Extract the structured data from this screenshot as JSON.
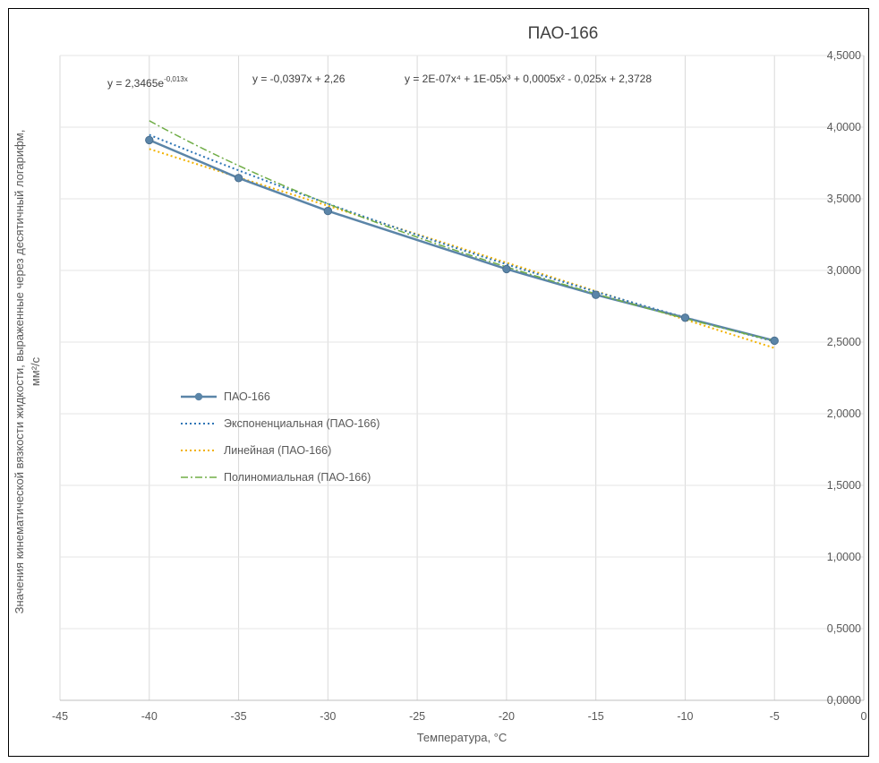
{
  "chart_data": {
    "type": "line",
    "title": "ПАО-166",
    "xlabel": "Температура, °C",
    "ylabel_line1": "Значения кинематической вязкости жидкости, выраженные  через десятичный логарифм,",
    "ylabel_line2": "мм²/с",
    "xlim": [
      -45,
      0
    ],
    "ylim": [
      0,
      4.5
    ],
    "x_ticks": [
      -45,
      -40,
      -35,
      -30,
      -25,
      -20,
      -15,
      -10,
      -5,
      0
    ],
    "x_tick_labels": [
      "-45",
      "-40",
      "-35",
      "-30",
      "-25",
      "-20",
      "-15",
      "-10",
      "-5",
      "0"
    ],
    "y_ticks": [
      0,
      0.5,
      1,
      1.5,
      2,
      2.5,
      3,
      3.5,
      4,
      4.5
    ],
    "y_tick_labels": [
      "0,0000",
      "0,5000",
      "1,0000",
      "1,5000",
      "2,0000",
      "2,5000",
      "3,0000",
      "3,5000",
      "4,0000",
      "4,5000"
    ],
    "y_axis_side": "right",
    "grid": "vertical",
    "series": [
      {
        "name": "ПАО-166",
        "x": [
          -40,
          -35,
          -30,
          -20,
          -15,
          -10,
          -5
        ],
        "y": [
          3.91,
          3.645,
          3.415,
          3.01,
          2.83,
          2.67,
          2.51
        ],
        "color": "#5B85A8",
        "style": "solid-markers"
      }
    ],
    "trendlines": [
      {
        "name": "Экспоненциальная (ПАО-166)",
        "type": "exponential",
        "equation": "y = 2,3465e",
        "equation_exp": "-0,013x",
        "a": 2.3465,
        "b": -0.013,
        "color": "#2E75B6",
        "style": "dotted"
      },
      {
        "name": "Линейная (ПАО-166)",
        "type": "linear",
        "equation": "y = -0,0397x + 2,26",
        "slope": -0.0397,
        "intercept": 2.26,
        "color": "#F2B200",
        "style": "dotted"
      },
      {
        "name": "Полиномиальная (ПАО-166)",
        "type": "polynomial",
        "equation": "y = 2E-07x⁴ + 1E-05x³ + 0,0005x² - 0,025x + 2,3728",
        "coefficients": [
          2.3728,
          -0.025,
          0.0005,
          1e-05,
          2e-07
        ],
        "color": "#70AD47",
        "style": "dash-dot"
      }
    ],
    "legend_position": "left-middle"
  }
}
